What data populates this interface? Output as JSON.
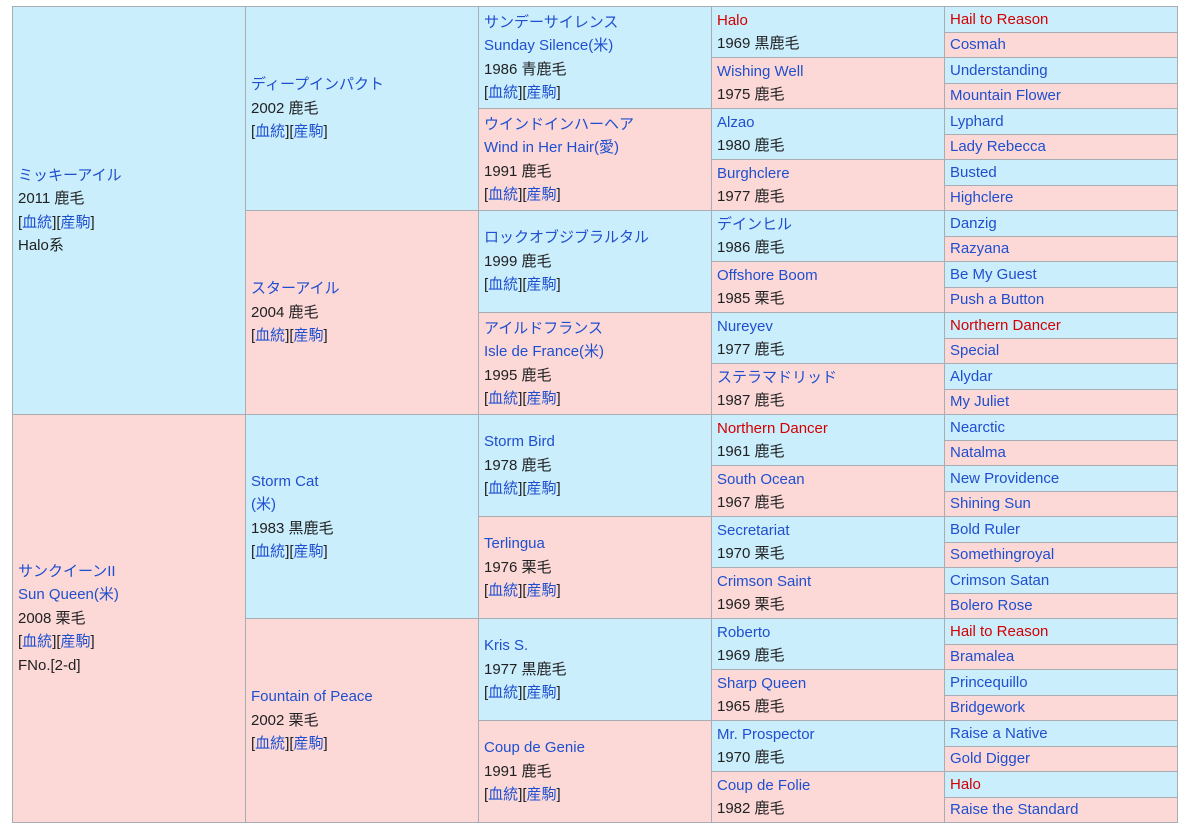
{
  "pedigree": {
    "generations": [
      [
        {
          "name": [
            "ミッキーアイル"
          ],
          "info": "2011 鹿毛",
          "refs": "[血統][産駒]",
          "note": "Halo系"
        },
        {
          "name": [
            "サンクイーンII",
            "Sun Queen(米)"
          ],
          "info": "2008 栗毛",
          "refs": "[血統][産駒]",
          "note": "FNo.[2-d]"
        }
      ],
      [
        {
          "name": [
            "ディープインパクト"
          ],
          "info": "2002 鹿毛",
          "refs": "[血統][産駒]"
        },
        {
          "name": [
            "スターアイル"
          ],
          "info": "2004 鹿毛",
          "refs": "[血統][産駒]"
        },
        {
          "name": [
            "Storm Cat",
            "(米)"
          ],
          "info": "1983 黒鹿毛",
          "refs": "[血統][産駒]"
        },
        {
          "name": [
            "Fountain of Peace"
          ],
          "info": "2002 栗毛",
          "refs": "[血統][産駒]"
        }
      ],
      [
        {
          "name": [
            "サンデーサイレンス",
            "Sunday Silence(米)"
          ],
          "info": "1986 青鹿毛",
          "refs": "[血統][産駒]"
        },
        {
          "name": [
            "ウインドインハーヘア",
            "Wind in Her Hair(愛)"
          ],
          "info": "1991 鹿毛",
          "refs": "[血統][産駒]"
        },
        {
          "name": [
            "ロックオブジブラルタル"
          ],
          "info": "1999 鹿毛",
          "refs": "[血統][産駒]"
        },
        {
          "name": [
            "アイルドフランス",
            "Isle de France(米)"
          ],
          "info": "1995 鹿毛",
          "refs": "[血統][産駒]"
        },
        {
          "name": [
            "Storm Bird"
          ],
          "info": "1978 鹿毛",
          "refs": "[血統][産駒]"
        },
        {
          "name": [
            "Terlingua"
          ],
          "info": "1976 栗毛",
          "refs": "[血統][産駒]"
        },
        {
          "name": [
            "Kris S."
          ],
          "info": "1977 黒鹿毛",
          "refs": "[血統][産駒]"
        },
        {
          "name": [
            "Coup de Genie"
          ],
          "info": "1991 鹿毛",
          "refs": "[血統][産駒]"
        }
      ],
      [
        {
          "name": [
            "Halo"
          ],
          "info": "1969 黒鹿毛",
          "color": "#d40000"
        },
        {
          "name": [
            "Wishing Well"
          ],
          "info": "1975 鹿毛"
        },
        {
          "name": [
            "Alzao"
          ],
          "info": "1980 鹿毛"
        },
        {
          "name": [
            "Burghclere"
          ],
          "info": "1977 鹿毛"
        },
        {
          "name": [
            "デインヒル"
          ],
          "info": "1986 鹿毛"
        },
        {
          "name": [
            "Offshore Boom"
          ],
          "info": "1985 栗毛"
        },
        {
          "name": [
            "Nureyev"
          ],
          "info": "1977 鹿毛"
        },
        {
          "name": [
            "ステラマドリッド"
          ],
          "info": "1987 鹿毛"
        },
        {
          "name": [
            "Northern Dancer"
          ],
          "info": "1961 鹿毛",
          "color": "#d40000"
        },
        {
          "name": [
            "South Ocean"
          ],
          "info": "1967 鹿毛"
        },
        {
          "name": [
            "Secretariat"
          ],
          "info": "1970 栗毛"
        },
        {
          "name": [
            "Crimson Saint"
          ],
          "info": "1969 栗毛"
        },
        {
          "name": [
            "Roberto"
          ],
          "info": "1969 鹿毛"
        },
        {
          "name": [
            "Sharp Queen"
          ],
          "info": "1965 鹿毛"
        },
        {
          "name": [
            "Mr. Prospector"
          ],
          "info": "1970 鹿毛"
        },
        {
          "name": [
            "Coup de Folie"
          ],
          "info": "1982 鹿毛"
        }
      ],
      [
        {
          "name": [
            "Hail to Reason"
          ],
          "color": "#d40000"
        },
        {
          "name": [
            "Cosmah"
          ]
        },
        {
          "name": [
            "Understanding"
          ]
        },
        {
          "name": [
            "Mountain Flower"
          ]
        },
        {
          "name": [
            "Lyphard"
          ]
        },
        {
          "name": [
            "Lady Rebecca"
          ]
        },
        {
          "name": [
            "Busted"
          ]
        },
        {
          "name": [
            "Highclere"
          ]
        },
        {
          "name": [
            "Danzig"
          ]
        },
        {
          "name": [
            "Razyana"
          ]
        },
        {
          "name": [
            "Be My Guest"
          ]
        },
        {
          "name": [
            "Push a Button"
          ]
        },
        {
          "name": [
            "Northern Dancer"
          ],
          "color": "#d40000"
        },
        {
          "name": [
            "Special"
          ]
        },
        {
          "name": [
            "Alydar"
          ]
        },
        {
          "name": [
            "My Juliet"
          ]
        },
        {
          "name": [
            "Nearctic"
          ]
        },
        {
          "name": [
            "Natalma"
          ]
        },
        {
          "name": [
            "New Providence"
          ]
        },
        {
          "name": [
            "Shining Sun"
          ]
        },
        {
          "name": [
            "Bold Ruler"
          ]
        },
        {
          "name": [
            "Somethingroyal"
          ]
        },
        {
          "name": [
            "Crimson Satan"
          ]
        },
        {
          "name": [
            "Bolero Rose"
          ]
        },
        {
          "name": [
            "Hail to Reason"
          ],
          "color": "#d40000"
        },
        {
          "name": [
            "Bramalea"
          ]
        },
        {
          "name": [
            "Princequillo"
          ]
        },
        {
          "name": [
            "Bridgework"
          ]
        },
        {
          "name": [
            "Raise a Native"
          ]
        },
        {
          "name": [
            "Gold Digger"
          ]
        },
        {
          "name": [
            "Halo"
          ],
          "color": "#d40000"
        },
        {
          "name": [
            "Raise the Standard"
          ]
        }
      ]
    ]
  }
}
